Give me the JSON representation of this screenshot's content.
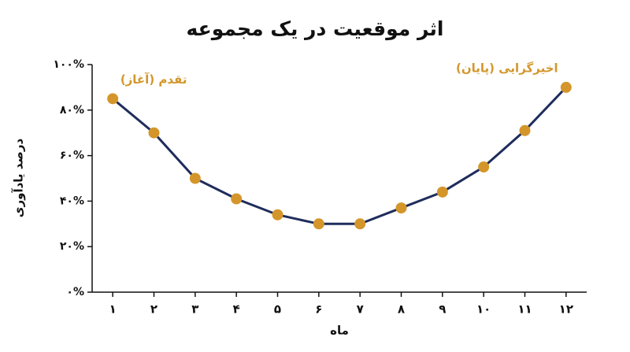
{
  "chart_data": {
    "type": "line",
    "title": "اثر موقعیت در یک مجموعه",
    "xlabel": "ماه",
    "ylabel": "درصد یادآوری",
    "categories": [
      "۱",
      "۲",
      "۳",
      "۴",
      "۵",
      "۶",
      "۷",
      "۸",
      "۹",
      "۱۰",
      "۱۱",
      "۱۲"
    ],
    "values": [
      85,
      70,
      50,
      41,
      34,
      30,
      30,
      37,
      44,
      55,
      71,
      90
    ],
    "line_color": "#1f2d5c",
    "marker_color": "#d4962a",
    "ylim": [
      0,
      100
    ],
    "yticks": [
      {
        "value": 0,
        "label": "۰%"
      },
      {
        "value": 20,
        "label": "۲۰%"
      },
      {
        "value": 40,
        "label": "۴۰%"
      },
      {
        "value": 60,
        "label": "۶۰%"
      },
      {
        "value": 80,
        "label": "۸۰%"
      },
      {
        "value": 100,
        "label": "۱۰۰%"
      }
    ],
    "annotations": [
      "تقدم (آغاز)",
      "اخیرگرایی (پایان)"
    ],
    "annotation_color": "#d4962a"
  }
}
